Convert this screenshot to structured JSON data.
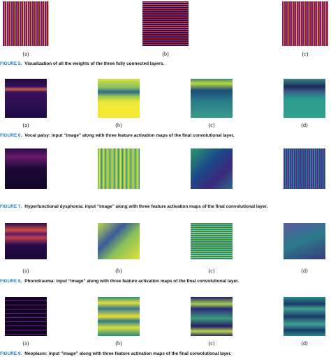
{
  "figures": [
    {
      "label": "FIGURE 5.",
      "caption": "Visualization of all the weights of the three fully connected layers.",
      "panels": [
        "(a)",
        "(b)",
        "(c)"
      ]
    },
    {
      "label": "FIGURE 6.",
      "caption": "Vocal palsy: input “image” along with three feature activation maps of the final convolutional layer.",
      "panels": [
        "(a)",
        "(b)",
        "(c)",
        "(d)"
      ]
    },
    {
      "label": "FIGURE 7.",
      "caption": "Hyperfunctional dysphonia: input “image” along with three feature activation maps of the final convolutional layer."
    },
    {
      "label": "FIGURE 8.",
      "caption": "Phonotrauma: input “image” along with three feature activation maps of the final convolutional layer.",
      "panels": [
        "(a)",
        "(b)",
        "(c)",
        "(d)"
      ]
    },
    {
      "label": "FIGURE 9.",
      "caption": "Neoplasm: input “image” along with three feature activation maps of the final convolutional layer.",
      "panels": [
        "(a)",
        "(b)",
        "(c)",
        "(d)"
      ]
    }
  ]
}
